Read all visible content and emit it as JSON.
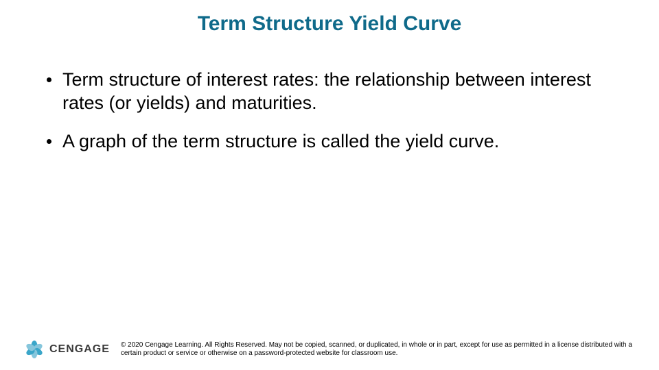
{
  "title": {
    "text": "Term Structure Yield Curve",
    "style": "color:#0f6a8a;font-size:30px;font-weight:bold;"
  },
  "bullets": [
    {
      "text": "Term structure of interest rates:  the relationship between interest rates (or yields) and maturities.",
      "style": "color:#000000;font-size:27px;"
    },
    {
      "text": "A graph of the term structure is called the yield curve.",
      "style": "color:#000000;font-size:27px;"
    }
  ],
  "logo": {
    "text": "CENGAGE",
    "petals": [
      "background:#3aa6c9;transform:translate(-50%,-100%) rotate(0deg);",
      "background:#86c6dc;transform:translate(-50%,-100%) rotate(60deg);",
      "background:#3aa6c9;transform:translate(-50%,-100%) rotate(120deg);",
      "background:#86c6dc;transform:translate(-50%,-100%) rotate(180deg);",
      "background:#3aa6c9;transform:translate(-50%,-100%) rotate(240deg);",
      "background:#86c6dc;transform:translate(-50%,-100%) rotate(300deg);"
    ]
  },
  "copyright": {
    "text": "© 2020 Cengage Learning. All Rights Reserved. May not be copied, scanned, or duplicated, in whole or in part, except for use as permitted in a license distributed with a certain product or service or otherwise on a password-protected website for classroom use.",
    "style": "color:#000000;font-size:10px;"
  }
}
